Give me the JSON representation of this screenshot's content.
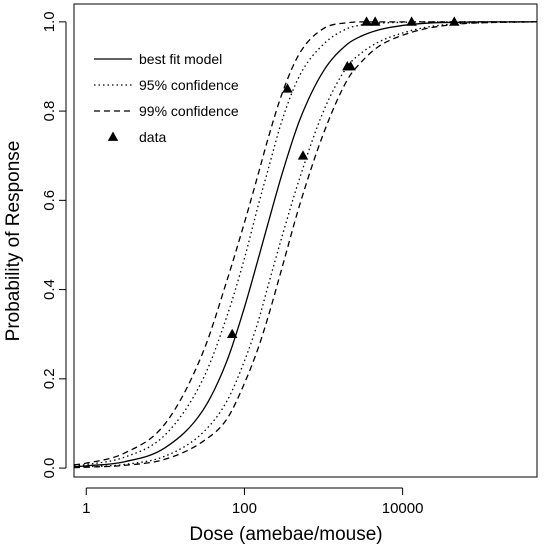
{
  "chart_data": {
    "type": "line",
    "xlabel": "Dose (amebae/mouse)",
    "ylabel": "Probability of Response",
    "x_scale": "log10",
    "xlim": [
      0.7,
      500000
    ],
    "ylim": [
      -0.02,
      1.04
    ],
    "x_ticks": [
      {
        "value": 1,
        "label": "1"
      },
      {
        "value": 100,
        "label": "100"
      },
      {
        "value": 10000,
        "label": "10000"
      }
    ],
    "y_ticks": [
      {
        "value": 0.0,
        "label": "0.0"
      },
      {
        "value": 0.2,
        "label": "0.2"
      },
      {
        "value": 0.4,
        "label": "0.4"
      },
      {
        "value": 0.6,
        "label": "0.6"
      },
      {
        "value": 0.8,
        "label": "0.8"
      },
      {
        "value": 1.0,
        "label": "1.0"
      }
    ],
    "grid": false,
    "legend_position": "top-left",
    "series": [
      {
        "name": "best fit model",
        "style": "solid",
        "x": [
          0.7,
          1,
          3,
          10,
          30,
          60,
          100,
          150,
          200,
          300,
          500,
          1000,
          2000,
          3000,
          5000,
          10000,
          20000,
          50000,
          100000,
          500000
        ],
        "y": [
          0.003,
          0.005,
          0.014,
          0.046,
          0.13,
          0.24,
          0.36,
          0.47,
          0.55,
          0.66,
          0.78,
          0.89,
          0.95,
          0.968,
          0.982,
          0.992,
          0.997,
          0.999,
          1.0,
          1.0
        ]
      },
      {
        "name": "95% confidence",
        "style": "dotted",
        "x": [
          0.7,
          1,
          3,
          10,
          30,
          60,
          100,
          150,
          200,
          300,
          500,
          1000,
          2000,
          3000,
          5000,
          10000,
          20000,
          50000,
          100000,
          500000
        ],
        "y": [
          0.005,
          0.008,
          0.024,
          0.075,
          0.2,
          0.34,
          0.47,
          0.59,
          0.67,
          0.78,
          0.88,
          0.95,
          0.985,
          0.993,
          0.997,
          0.999,
          1.0,
          1.0,
          1.0,
          1.0
        ]
      },
      {
        "name": "95% confidence",
        "style": "dotted",
        "x": [
          0.7,
          1,
          3,
          10,
          30,
          60,
          100,
          150,
          200,
          300,
          500,
          1000,
          2000,
          3000,
          5000,
          10000,
          20000,
          50000,
          100000,
          500000
        ],
        "y": [
          0.002,
          0.003,
          0.008,
          0.027,
          0.08,
          0.15,
          0.24,
          0.33,
          0.41,
          0.52,
          0.65,
          0.8,
          0.9,
          0.93,
          0.955,
          0.975,
          0.988,
          0.996,
          0.998,
          1.0
        ]
      },
      {
        "name": "99% confidence",
        "style": "dashed",
        "x": [
          0.7,
          1,
          3,
          10,
          30,
          60,
          100,
          150,
          200,
          300,
          500,
          1000,
          2000,
          3000,
          5000,
          10000,
          20000,
          50000,
          100000,
          500000
        ],
        "y": [
          0.007,
          0.011,
          0.033,
          0.1,
          0.26,
          0.42,
          0.55,
          0.66,
          0.74,
          0.84,
          0.93,
          0.985,
          0.998,
          1.0,
          1.0,
          1.0,
          1.0,
          1.0,
          1.0,
          1.0
        ]
      },
      {
        "name": "99% confidence",
        "style": "dashed",
        "x": [
          0.7,
          1,
          3,
          10,
          30,
          60,
          100,
          150,
          200,
          300,
          500,
          1000,
          2000,
          3000,
          5000,
          10000,
          20000,
          50000,
          100000,
          500000
        ],
        "y": [
          0.001,
          0.002,
          0.006,
          0.02,
          0.06,
          0.11,
          0.19,
          0.27,
          0.34,
          0.45,
          0.59,
          0.75,
          0.87,
          0.91,
          0.945,
          0.97,
          0.985,
          0.995,
          0.998,
          1.0
        ]
      }
    ],
    "data_points": {
      "name": "data",
      "marker": "triangle",
      "x": [
        70,
        350,
        550,
        2000,
        2200,
        3500,
        4500,
        13000,
        45000
      ],
      "y": [
        0.3,
        0.85,
        0.7,
        0.9,
        0.9,
        1.0,
        1.0,
        1.0,
        1.0
      ]
    },
    "legend": [
      {
        "label": "best fit model",
        "style": "solid"
      },
      {
        "label": "95% confidence",
        "style": "dotted"
      },
      {
        "label": "99% confidence",
        "style": "dashed"
      },
      {
        "label": "data",
        "style": "triangle"
      }
    ]
  }
}
